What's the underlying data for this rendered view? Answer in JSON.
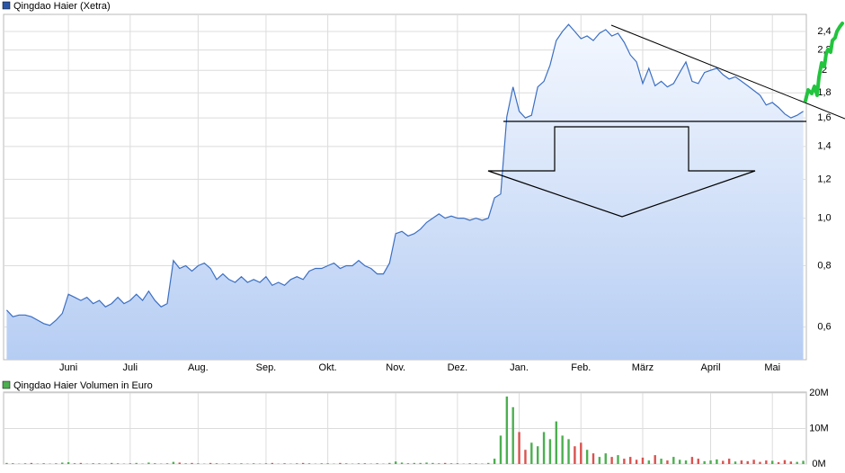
{
  "chart_data": [
    {
      "type": "line",
      "title": "Qingdao Haier (Xetra)",
      "color": "#3b6fc4",
      "log_scale": true,
      "grid": true,
      "categories": [
        null,
        null,
        null,
        null,
        null,
        null,
        null,
        null,
        null,
        null,
        "Juni",
        null,
        null,
        null,
        null,
        null,
        null,
        null,
        null,
        null,
        "Juli",
        null,
        null,
        null,
        null,
        null,
        null,
        null,
        null,
        null,
        null,
        "Aug.",
        null,
        null,
        null,
        null,
        null,
        null,
        null,
        null,
        null,
        null,
        "Sep.",
        null,
        null,
        null,
        null,
        null,
        null,
        null,
        null,
        null,
        "Okt.",
        null,
        null,
        null,
        null,
        null,
        null,
        null,
        null,
        null,
        null,
        "Nov.",
        null,
        null,
        null,
        null,
        null,
        null,
        null,
        null,
        null,
        "Dez.",
        null,
        null,
        null,
        null,
        null,
        null,
        null,
        null,
        null,
        "Jan.",
        null,
        null,
        null,
        null,
        null,
        null,
        null,
        null,
        null,
        "Feb.",
        null,
        null,
        null,
        null,
        null,
        null,
        null,
        null,
        null,
        "März",
        null,
        null,
        null,
        null,
        null,
        null,
        null,
        null,
        null,
        null,
        "April",
        null,
        null,
        null,
        null,
        null,
        null,
        null,
        null,
        null,
        "Mai",
        null,
        null,
        null,
        null,
        null
      ],
      "values": [
        0.65,
        0.63,
        0.635,
        0.635,
        0.63,
        0.62,
        0.61,
        0.605,
        0.62,
        0.64,
        0.7,
        0.69,
        0.68,
        0.69,
        0.67,
        0.68,
        0.66,
        0.67,
        0.69,
        0.67,
        0.68,
        0.7,
        0.68,
        0.71,
        0.68,
        0.66,
        0.67,
        0.82,
        0.79,
        0.8,
        0.78,
        0.8,
        0.81,
        0.79,
        0.75,
        0.77,
        0.75,
        0.74,
        0.76,
        0.74,
        0.75,
        0.74,
        0.76,
        0.73,
        0.74,
        0.73,
        0.75,
        0.76,
        0.75,
        0.78,
        0.79,
        0.79,
        0.8,
        0.81,
        0.79,
        0.8,
        0.8,
        0.82,
        0.8,
        0.79,
        0.77,
        0.77,
        0.81,
        0.93,
        0.94,
        0.92,
        0.93,
        0.95,
        0.98,
        1.0,
        1.02,
        1.0,
        1.01,
        1.0,
        1.0,
        0.99,
        1.0,
        0.99,
        1.0,
        1.1,
        1.12,
        1.61,
        1.85,
        1.65,
        1.6,
        1.62,
        1.85,
        1.9,
        2.05,
        2.3,
        2.4,
        2.48,
        2.4,
        2.32,
        2.35,
        2.3,
        2.38,
        2.42,
        2.35,
        2.38,
        2.28,
        2.15,
        2.08,
        1.88,
        2.02,
        1.86,
        1.9,
        1.85,
        1.88,
        1.98,
        2.08,
        1.9,
        1.88,
        1.98,
        2.0,
        2.02,
        1.96,
        1.92,
        1.94,
        1.9,
        1.86,
        1.82,
        1.78,
        1.7,
        1.72,
        1.68,
        1.63,
        1.6,
        1.62,
        1.65
      ],
      "ylim": [
        0.515,
        2.6
      ],
      "yticks": [
        {
          "value": 0.6,
          "label": "0,6"
        },
        {
          "value": 0.8,
          "label": "0,8"
        },
        {
          "value": 1.0,
          "label": "1,0"
        },
        {
          "value": 1.2,
          "label": "1,2"
        },
        {
          "value": 1.4,
          "label": "1,4"
        },
        {
          "value": 1.6,
          "label": "1,6"
        },
        {
          "value": 1.8,
          "label": "1,8"
        },
        {
          "value": 2.0,
          "label": "2"
        },
        {
          "value": 2.2,
          "label": "2,2"
        },
        {
          "value": 2.4,
          "label": "2,4"
        }
      ]
    },
    {
      "type": "bar",
      "title": "Qingdao Haier Volumen in Euro",
      "color": "#4caf50",
      "up_color": "#4caf50",
      "down_color": "#d9534f",
      "grid": true,
      "values": [
        0.3,
        0.2,
        0.1,
        0.2,
        0.3,
        0.1,
        0.2,
        0.1,
        0.2,
        0.4,
        0.5,
        0.2,
        0.3,
        0.1,
        0.2,
        0.2,
        0.1,
        0.3,
        0.2,
        0.1,
        0.2,
        0.3,
        0.1,
        0.4,
        0.2,
        0.1,
        0.2,
        0.6,
        0.4,
        0.2,
        0.3,
        0.2,
        0.1,
        0.3,
        0.2,
        0.1,
        0.2,
        0.1,
        0.2,
        0.1,
        0.2,
        0.1,
        0.2,
        0.3,
        0.1,
        0.2,
        0.1,
        0.2,
        0.3,
        0.2,
        0.1,
        0.2,
        0.2,
        0.1,
        0.3,
        0.2,
        0.1,
        0.2,
        0.2,
        0.1,
        0.2,
        0.1,
        0.3,
        0.7,
        0.4,
        0.2,
        0.3,
        0.3,
        0.4,
        0.3,
        0.2,
        0.3,
        0.2,
        0.2,
        0.1,
        0.2,
        0.2,
        0.1,
        0.3,
        1.5,
        8,
        19,
        16,
        9,
        4,
        6,
        5,
        9,
        7,
        12,
        8,
        7,
        5,
        6,
        4,
        3,
        2,
        3,
        2,
        2.5,
        1.5,
        2,
        1.2,
        1.8,
        1,
        2.5,
        1.5,
        1,
        2,
        1.2,
        1,
        2,
        1.5,
        0.8,
        1,
        1.3,
        0.9,
        1.5,
        0.7,
        1,
        0.8,
        1.2,
        0.6,
        1,
        0.9,
        0.5,
        1.1,
        0.7,
        0.6,
        0.9
      ],
      "ylim": [
        0,
        20
      ],
      "yticks": [
        {
          "value": 0,
          "label": "0M"
        },
        {
          "value": 10,
          "label": "10M"
        },
        {
          "value": 20,
          "label": "20M"
        }
      ]
    }
  ]
}
